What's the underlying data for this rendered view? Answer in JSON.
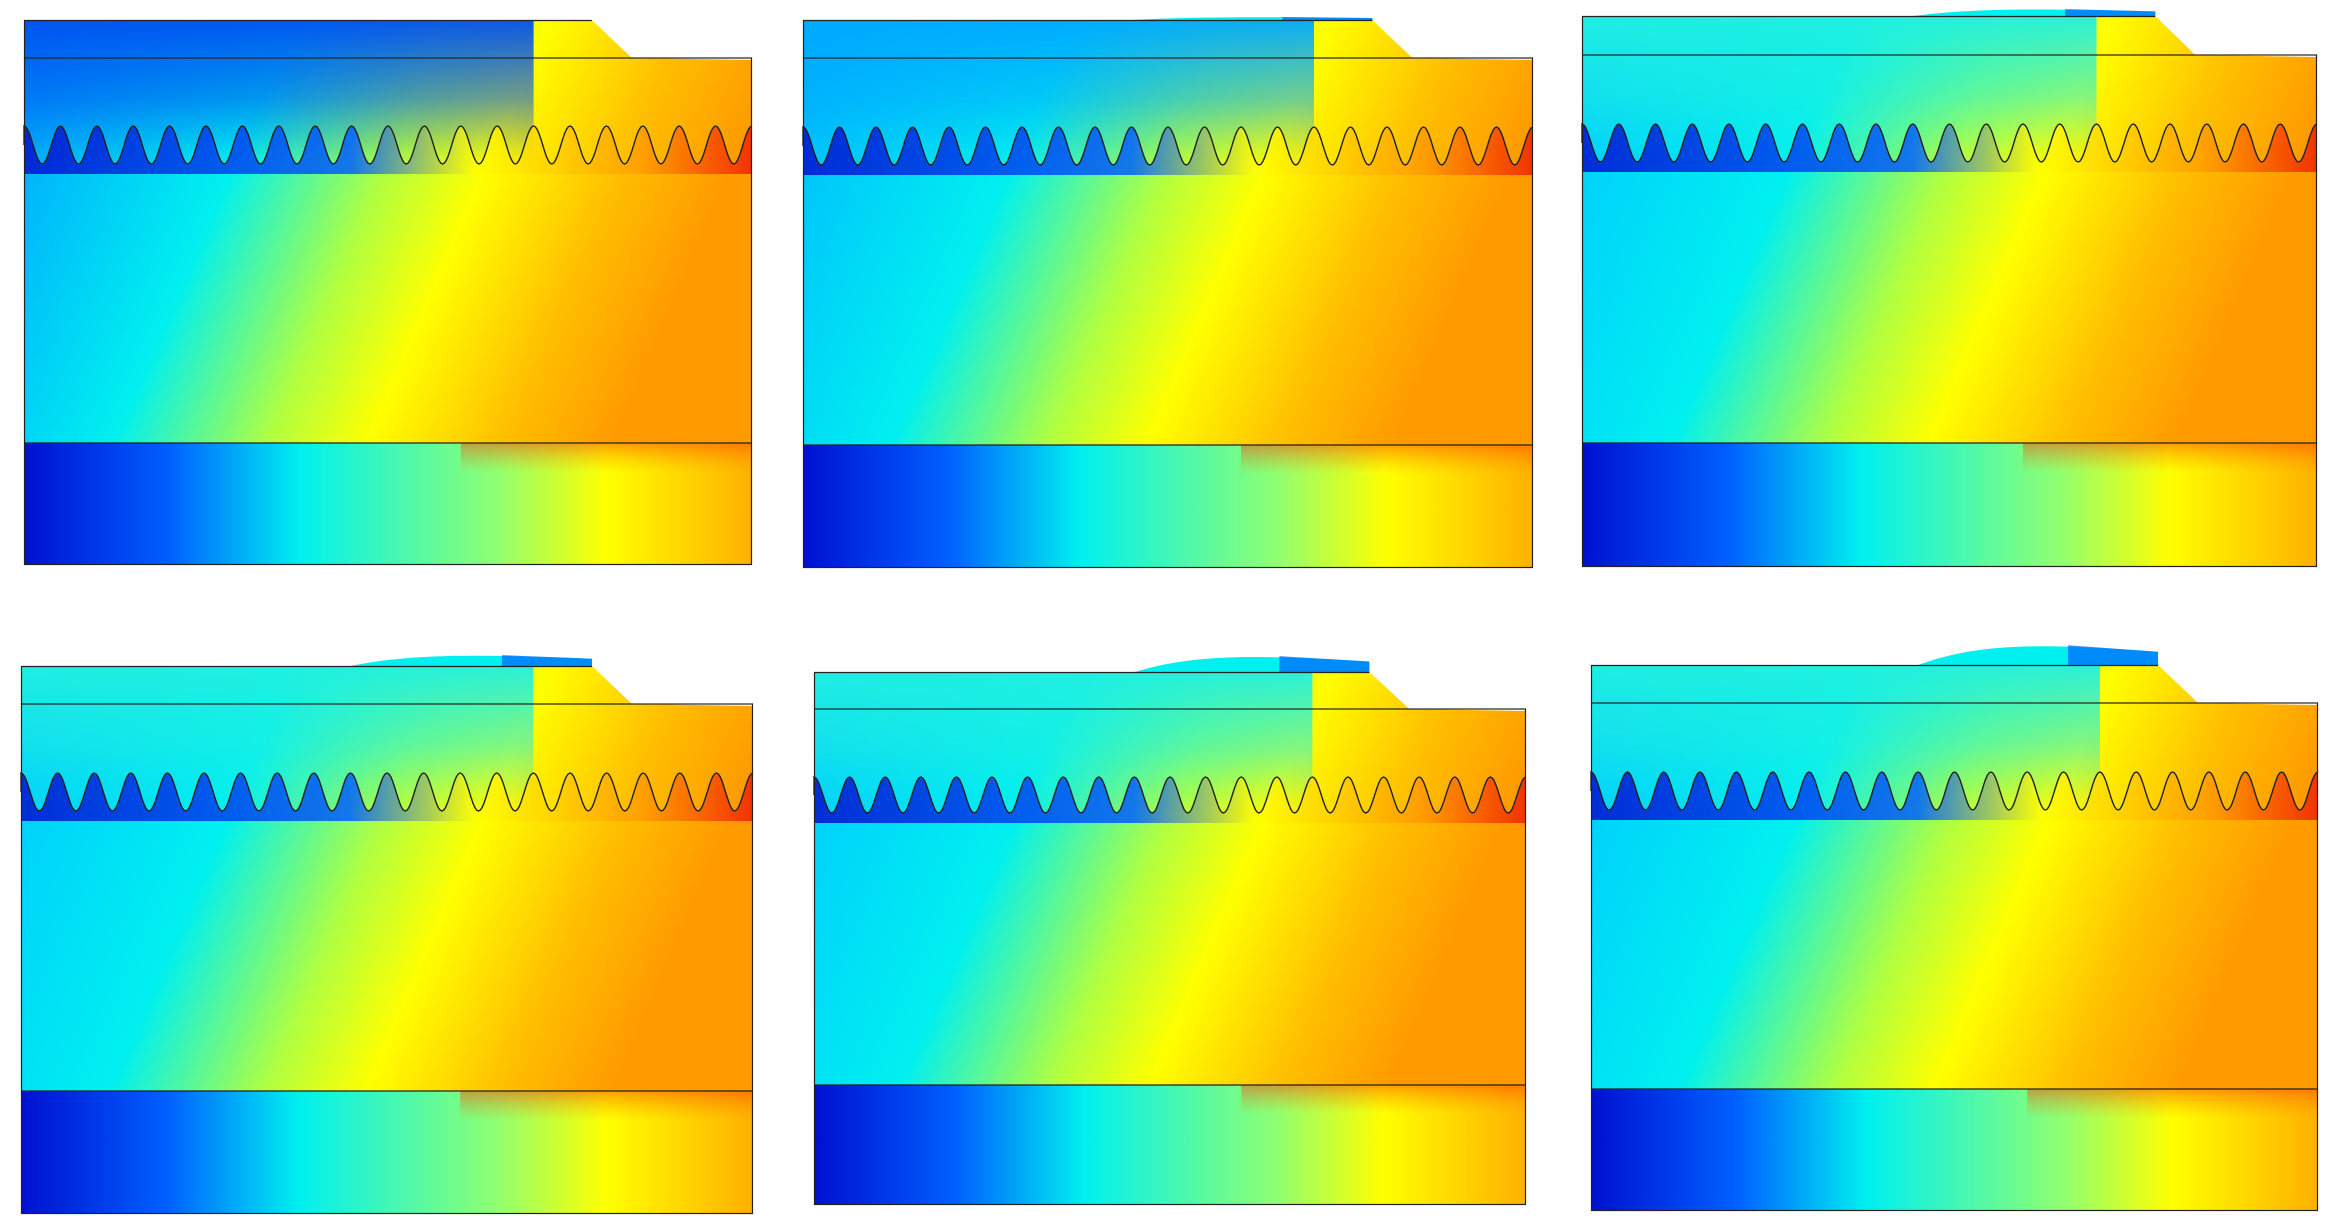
{
  "figure": {
    "panels": [
      {
        "id": 1,
        "surface_bulge": 0.0,
        "top_tint": "#0050f0",
        "mid_tint": "#00a0ff"
      },
      {
        "id": 2,
        "surface_bulge": 0.15,
        "top_tint": "#00a8ff",
        "mid_tint": "#00b8ff"
      },
      {
        "id": 3,
        "surface_bulge": 0.35,
        "top_tint": "#20f0e0",
        "mid_tint": "#00c8ff"
      },
      {
        "id": 4,
        "surface_bulge": 0.55,
        "top_tint": "#20f0e0",
        "mid_tint": "#00c8ff"
      },
      {
        "id": 5,
        "surface_bulge": 0.8,
        "top_tint": "#20f0e0",
        "mid_tint": "#00c8ff"
      },
      {
        "id": 6,
        "surface_bulge": 1.0,
        "top_tint": "#20f0e0",
        "mid_tint": "#00c8ff"
      }
    ],
    "colormap": "jet",
    "colors": {
      "deep_blue": "#0010d0",
      "blue": "#0060ff",
      "cyan": "#00f0f0",
      "yellow": "#ffff00",
      "orange": "#ff9a00",
      "red": "#f02000",
      "outline": "#222222"
    },
    "wave_periods": 20
  }
}
